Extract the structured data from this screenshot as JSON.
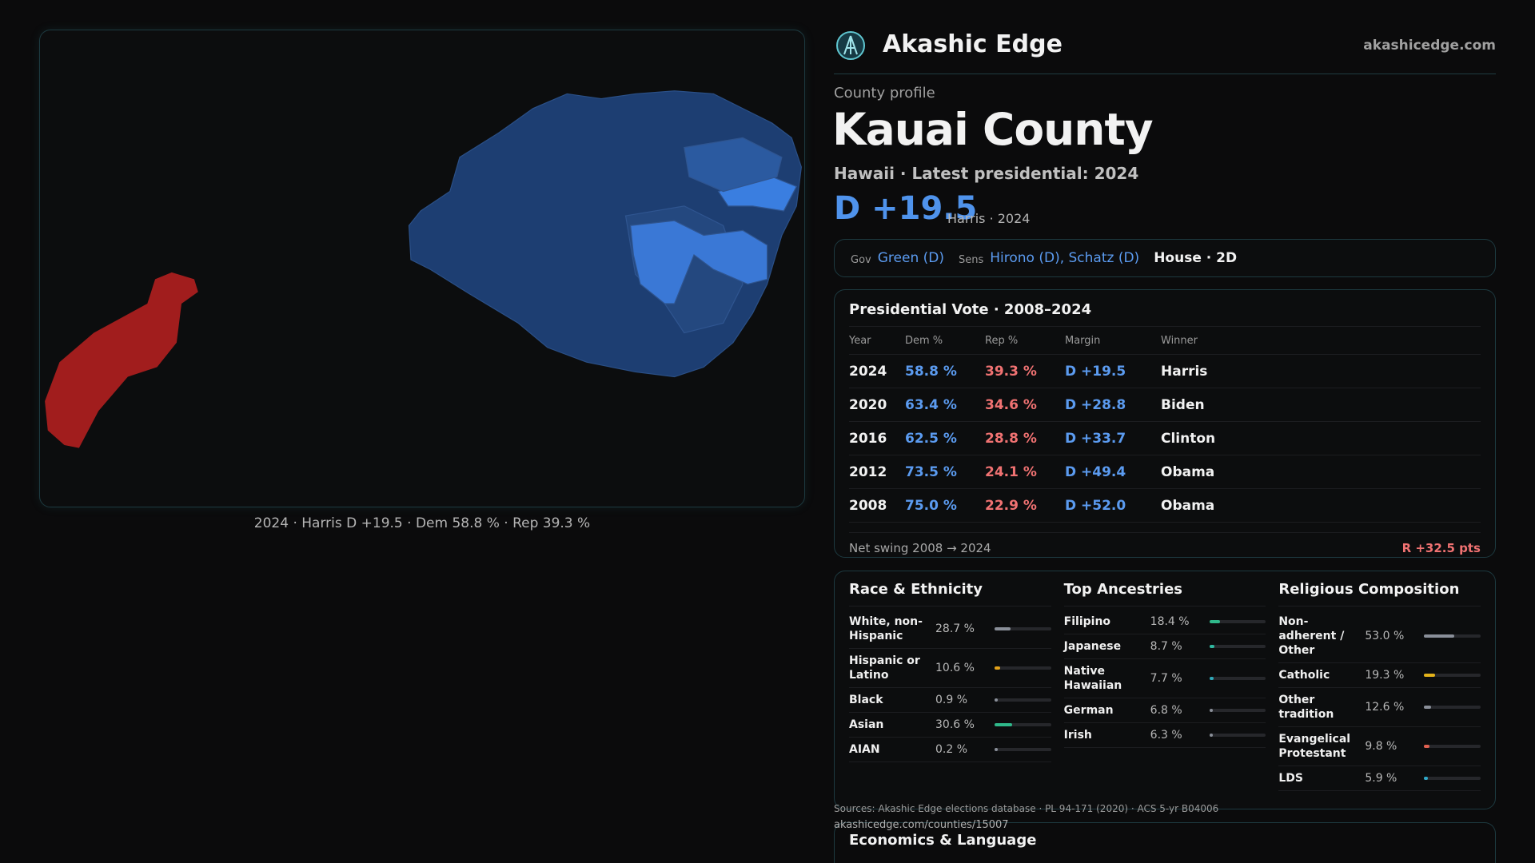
{
  "brand": {
    "name": "Akashic Edge",
    "site": "akashicedge.com"
  },
  "map": {
    "caption": "2024 · Harris D +19.5 · Dem 58.8 % · Rep 39.3 %"
  },
  "profile": {
    "eyebrow": "County profile",
    "title": "Kauai County",
    "subtitle": "Hawaii · Latest presidential: 2024",
    "margin": "D +19.5",
    "margin_note": "Harris · 2024"
  },
  "officials": {
    "gov_label": "Gov",
    "gov": "Green (D)",
    "sens_label": "Sens",
    "sens": "Hirono (D), Schatz (D)",
    "house": "House · 2D"
  },
  "vote_table": {
    "title": "Presidential Vote · 2008–2024",
    "columns": [
      "Year",
      "Dem %",
      "Rep %",
      "Margin",
      "Winner"
    ],
    "rows": [
      [
        "2024",
        "58.8 %",
        "39.3 %",
        "D +19.5",
        "Harris"
      ],
      [
        "2020",
        "63.4 %",
        "34.6 %",
        "D +28.8",
        "Biden"
      ],
      [
        "2016",
        "62.5 %",
        "28.8 %",
        "D +33.7",
        "Clinton"
      ],
      [
        "2012",
        "73.5 %",
        "24.1 %",
        "D +49.4",
        "Obama"
      ],
      [
        "2008",
        "75.0 %",
        "22.9 %",
        "D +52.0",
        "Obama"
      ]
    ],
    "swing_label": "Net swing 2008 → 2024",
    "swing_value": "R +32.5 pts"
  },
  "demographics": [
    {
      "title": "Race & Ethnicity",
      "items": [
        {
          "label": "White, non-Hispanic",
          "value": 28.7,
          "value_label": "28.7 %",
          "color": "#8a8f99"
        },
        {
          "label": "Hispanic or Latino",
          "value": 10.6,
          "value_label": "10.6 %",
          "color": "#e3a21a"
        },
        {
          "label": "Black",
          "value": 0.9,
          "value_label": "0.9 %",
          "color": "#8a8f99"
        },
        {
          "label": "Asian",
          "value": 30.6,
          "value_label": "30.6 %",
          "color": "#2fb88a"
        },
        {
          "label": "AIAN",
          "value": 0.2,
          "value_label": "0.2 %",
          "color": "#8a8f99"
        }
      ]
    },
    {
      "title": "Top Ancestries",
      "items": [
        {
          "label": "Filipino",
          "value": 18.4,
          "value_label": "18.4 %",
          "color": "#2fb88a"
        },
        {
          "label": "Japanese",
          "value": 8.7,
          "value_label": "8.7 %",
          "color": "#2fb8a0"
        },
        {
          "label": "Native Hawaiian",
          "value": 7.7,
          "value_label": "7.7 %",
          "color": "#2fa8b8"
        },
        {
          "label": "German",
          "value": 6.8,
          "value_label": "6.8 %",
          "color": "#8a8f99"
        },
        {
          "label": "Irish",
          "value": 6.3,
          "value_label": "6.3 %",
          "color": "#8a8f99"
        }
      ]
    },
    {
      "title": "Religious Composition",
      "items": [
        {
          "label": "Non-adherent / Other",
          "value": 53.0,
          "value_label": "53.0 %",
          "color": "#8a8f99"
        },
        {
          "label": "Catholic",
          "value": 19.3,
          "value_label": "19.3 %",
          "color": "#e3b21a"
        },
        {
          "label": "Other tradition",
          "value": 12.6,
          "value_label": "12.6 %",
          "color": "#8a8f99"
        },
        {
          "label": "Evangelical Protestant",
          "value": 9.8,
          "value_label": "9.8 %",
          "color": "#e06050"
        },
        {
          "label": "LDS",
          "value": 5.9,
          "value_label": "5.9 %",
          "color": "#2fa8c8"
        }
      ]
    }
  ],
  "sources": "Sources: Akashic Edge elections database · PL 94-171 (2020) · ACS 5-yr B04006",
  "url": "akashicedge.com/counties/15007",
  "economics": {
    "title": "Economics & Language"
  }
}
